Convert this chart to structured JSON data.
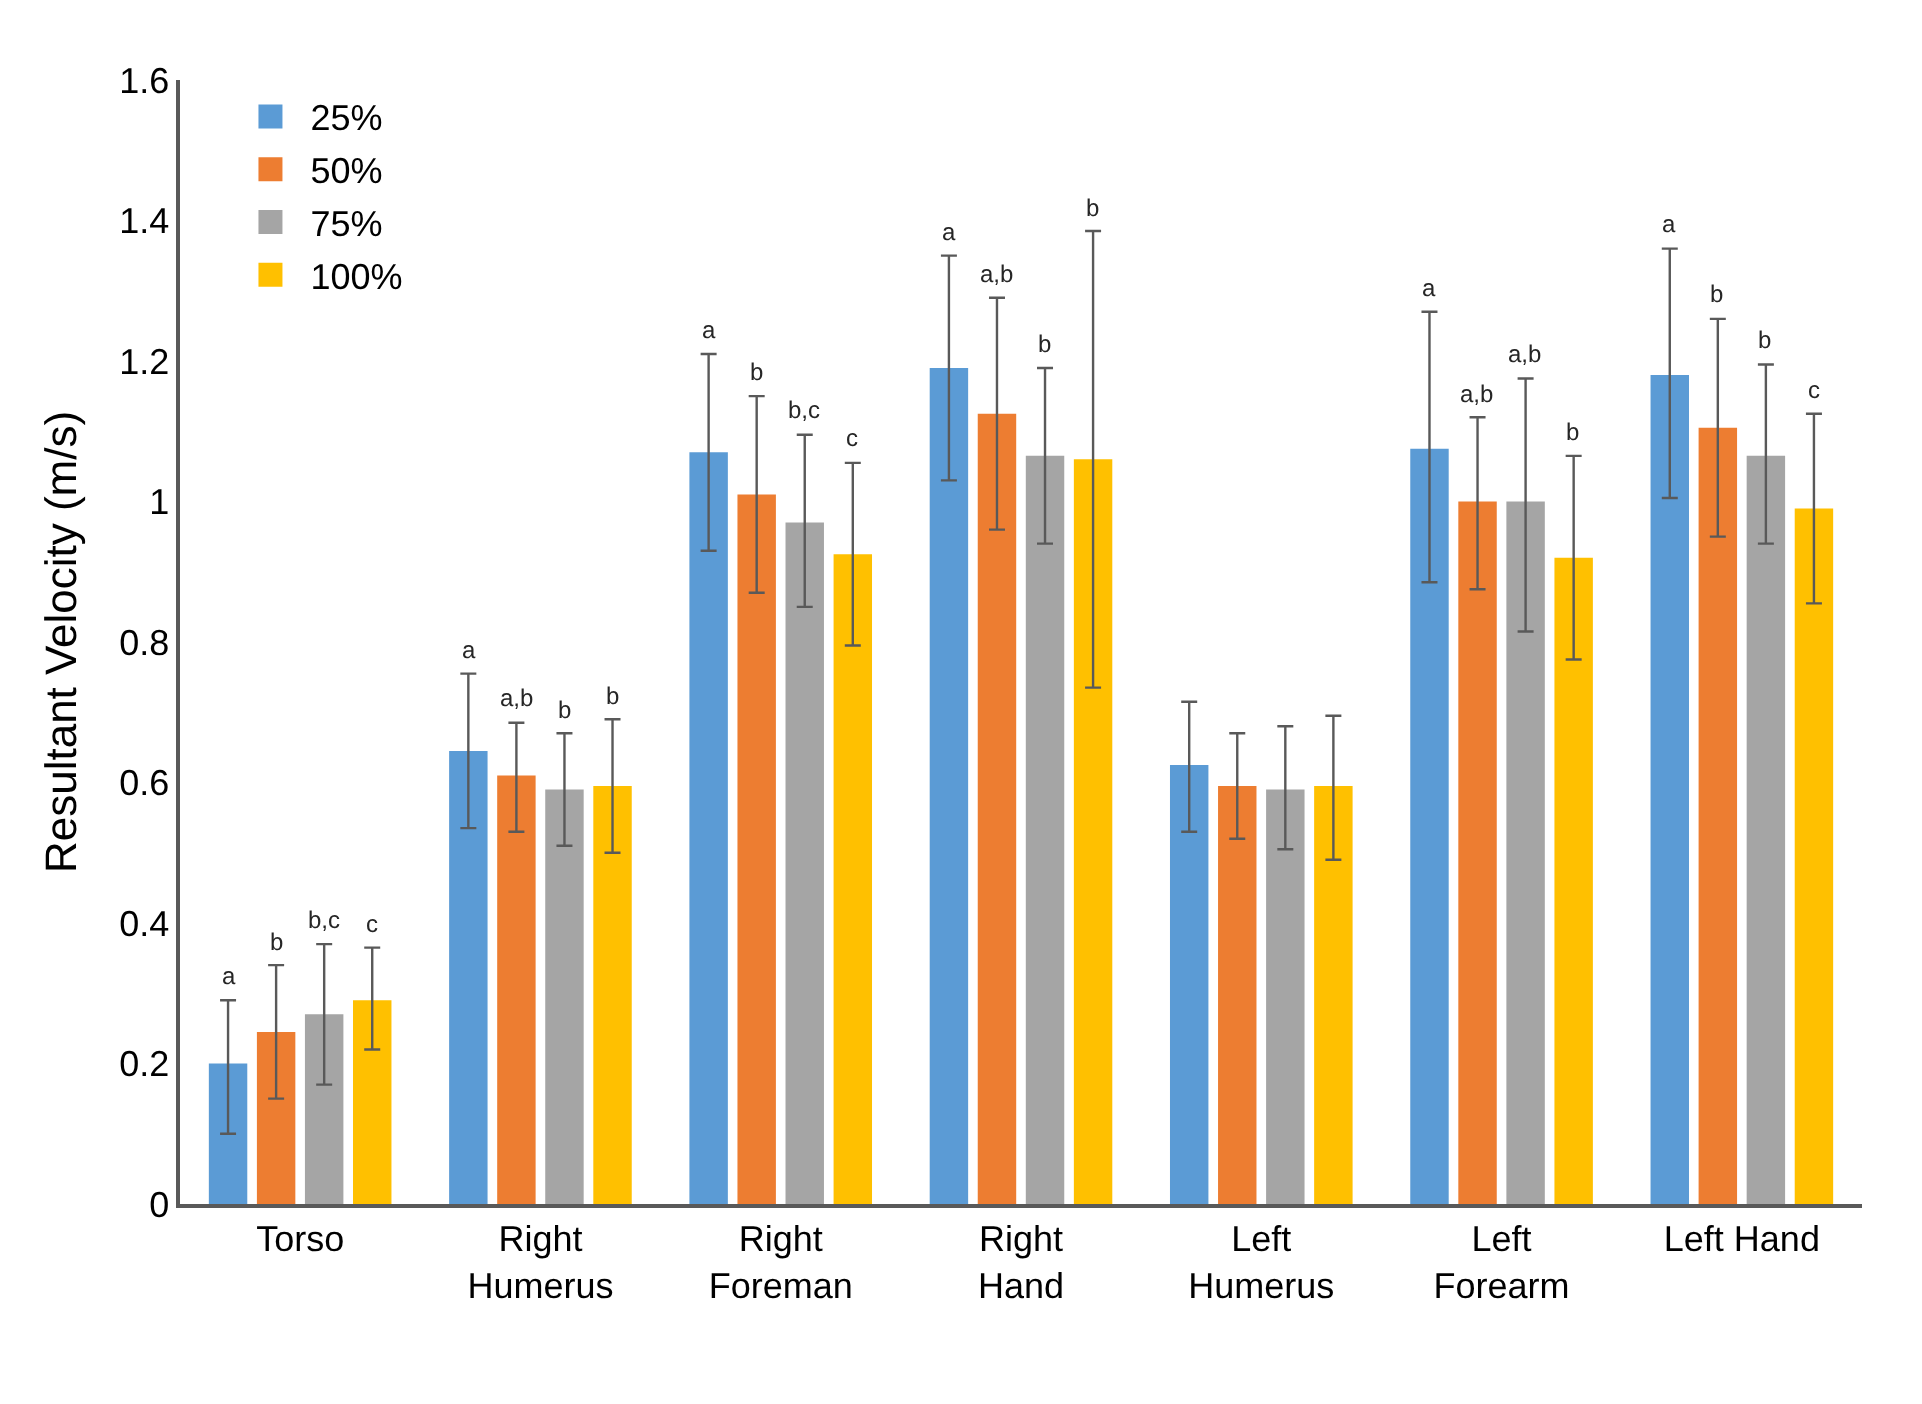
{
  "chart_data": {
    "type": "bar",
    "ylabel": "Resultant Velocity (m/s)",
    "categories": [
      "Torso",
      "Right\nHumerus",
      "Right\nForeman",
      "Right\nHand",
      "Left\nHumerus",
      "Left\nForearm",
      "Left Hand"
    ],
    "series": [
      {
        "name": "25%",
        "color": "#5b9bd5",
        "values": [
          0.2,
          0.645,
          1.07,
          1.19,
          0.625,
          1.075,
          1.18
        ],
        "errors": [
          [
            0.1,
            0.29
          ],
          [
            0.535,
            0.755
          ],
          [
            0.93,
            1.21
          ],
          [
            1.03,
            1.35
          ],
          [
            0.53,
            0.715
          ],
          [
            0.885,
            1.27
          ],
          [
            1.005,
            1.36
          ]
        ]
      },
      {
        "name": "50%",
        "color": "#ed7d31",
        "values": [
          0.245,
          0.61,
          1.01,
          1.125,
          0.595,
          1.0,
          1.105
        ],
        "errors": [
          [
            0.15,
            0.34
          ],
          [
            0.53,
            0.685
          ],
          [
            0.87,
            1.15
          ],
          [
            0.96,
            1.29
          ],
          [
            0.52,
            0.67
          ],
          [
            0.875,
            1.12
          ],
          [
            0.95,
            1.26
          ]
        ]
      },
      {
        "name": "75%",
        "color": "#a5a5a5",
        "values": [
          0.27,
          0.59,
          0.97,
          1.065,
          0.59,
          1.0,
          1.065
        ],
        "errors": [
          [
            0.17,
            0.37
          ],
          [
            0.51,
            0.67
          ],
          [
            0.85,
            1.095
          ],
          [
            0.94,
            1.19
          ],
          [
            0.505,
            0.68
          ],
          [
            0.815,
            1.175
          ],
          [
            0.94,
            1.195
          ]
        ]
      },
      {
        "name": "100%",
        "color": "#ffc000",
        "values": [
          0.29,
          0.595,
          0.925,
          1.06,
          0.595,
          0.92,
          0.99
        ],
        "errors": [
          [
            0.22,
            0.365
          ],
          [
            0.5,
            0.69
          ],
          [
            0.795,
            1.055
          ],
          [
            0.735,
            1.385
          ],
          [
            0.49,
            0.695
          ],
          [
            0.775,
            1.065
          ],
          [
            0.855,
            1.125
          ]
        ]
      }
    ],
    "annotations": [
      "a",
      "b",
      "b,c",
      "c",
      "a",
      "a,b",
      "b",
      "b",
      "a",
      "b",
      "b,c",
      "c",
      "a",
      "a,b",
      "b",
      "b",
      "a",
      "a,b",
      "a,b",
      "b",
      "a",
      "b",
      "b",
      "c"
    ],
    "ylim": [
      0,
      1.6
    ],
    "yticks": [
      0,
      0.2,
      0.4,
      0.6,
      0.8,
      1,
      1.2,
      1.4,
      1.6
    ],
    "legend": "top left"
  }
}
